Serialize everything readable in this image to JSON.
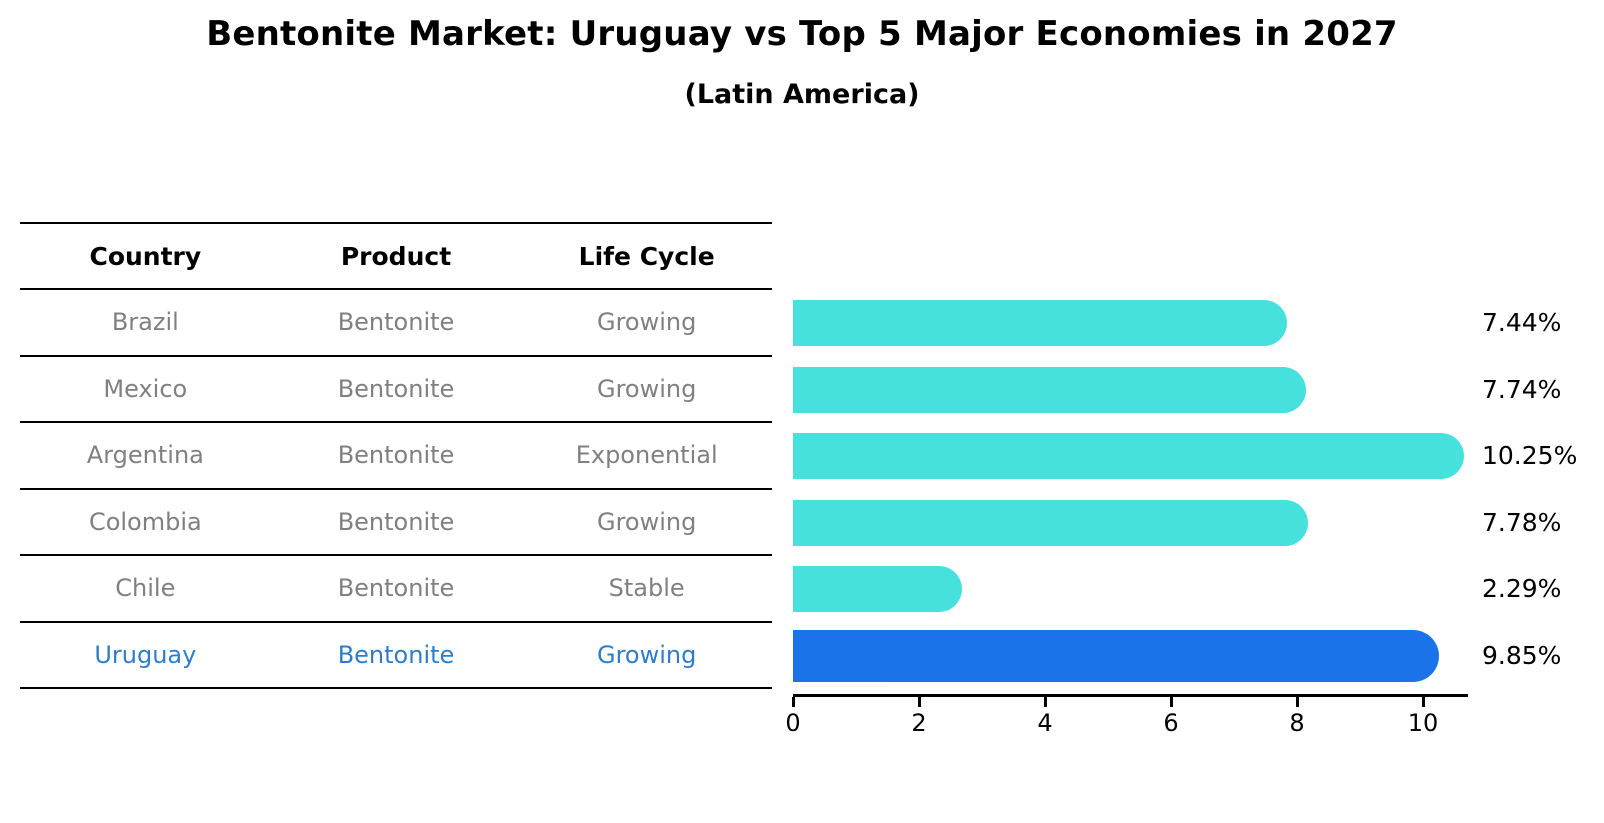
{
  "title": "Bentonite Market: Uruguay vs Top 5 Major Economies in 2027",
  "subtitle": "(Latin America)",
  "table": {
    "headers": [
      "Country",
      "Product",
      "Life Cycle"
    ],
    "rows": [
      {
        "country": "Brazil",
        "product": "Bentonite",
        "life_cycle": "Growing",
        "highlight": false
      },
      {
        "country": "Mexico",
        "product": "Bentonite",
        "life_cycle": "Growing",
        "highlight": false
      },
      {
        "country": "Argentina",
        "product": "Bentonite",
        "life_cycle": "Exponential",
        "highlight": false
      },
      {
        "country": "Colombia",
        "product": "Bentonite",
        "life_cycle": "Growing",
        "highlight": false
      },
      {
        "country": "Chile",
        "product": "Bentonite",
        "life_cycle": "Stable",
        "highlight": false
      },
      {
        "country": "Uruguay",
        "product": "Bentonite",
        "life_cycle": "Growing",
        "highlight": true
      }
    ]
  },
  "chart_data": {
    "type": "bar",
    "orientation": "horizontal",
    "categories": [
      "Brazil",
      "Mexico",
      "Argentina",
      "Colombia",
      "Chile",
      "Uruguay"
    ],
    "values": [
      7.44,
      7.74,
      10.25,
      7.78,
      2.29,
      9.85
    ],
    "value_labels": [
      "7.44%",
      "7.74%",
      "10.25%",
      "7.78%",
      "2.29%",
      "9.85%"
    ],
    "highlight_index": 5,
    "x_ticks": [
      0,
      2,
      4,
      6,
      8,
      10
    ],
    "xlim": [
      0,
      10.71
    ],
    "grid": false,
    "legend": null,
    "bar_color": "#46e1dc",
    "highlight_bar_color": "#1a73e8",
    "highlight_text_color": "#2f7dc8",
    "muted_text_color": "#808080"
  }
}
